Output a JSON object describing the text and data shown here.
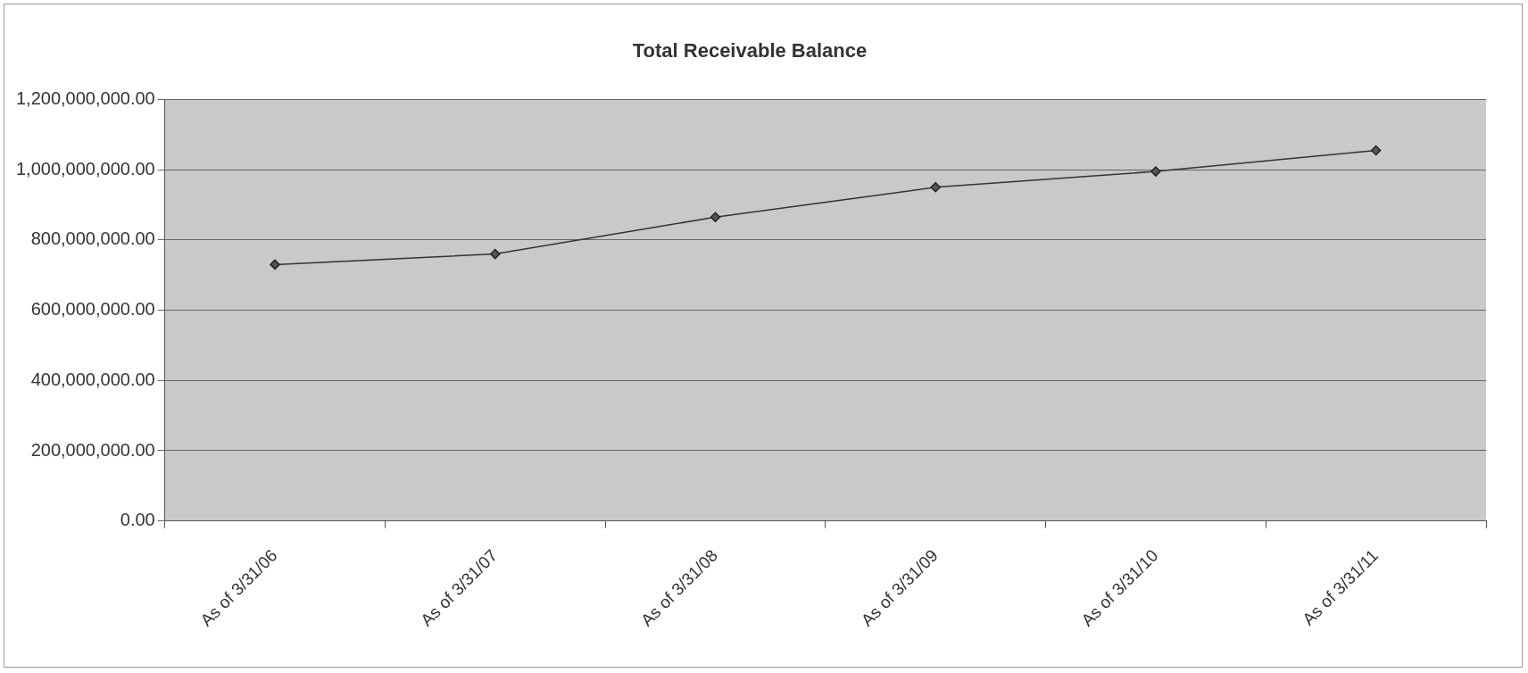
{
  "chart_data": {
    "type": "line",
    "title": "Total Receivable Balance",
    "categories": [
      "As of 3/31/06",
      "As of 3/31/07",
      "As of 3/31/08",
      "As of 3/31/09",
      "As of 3/31/10",
      "As of 3/31/11"
    ],
    "series": [
      {
        "color": "#333333",
        "values": [
          730000000,
          760000000,
          865000000,
          950000000,
          995000000,
          1055000000
        ]
      }
    ],
    "ylim": [
      0,
      1200000000
    ],
    "yticks": [
      {
        "value": 0,
        "label": "0.00"
      },
      {
        "value": 200000000,
        "label": "200,000,000.00"
      },
      {
        "value": 400000000,
        "label": "400,000,000.00"
      },
      {
        "value": 600000000,
        "label": "600,000,000.00"
      },
      {
        "value": 800000000,
        "label": "800,000,000.00"
      },
      {
        "value": 1000000000,
        "label": "1,000,000,000.00"
      },
      {
        "value": 1200000000,
        "label": "1,200,000,000.00"
      }
    ],
    "grid": "y",
    "legend": false,
    "marker": "diamond",
    "line_style": "solid"
  }
}
